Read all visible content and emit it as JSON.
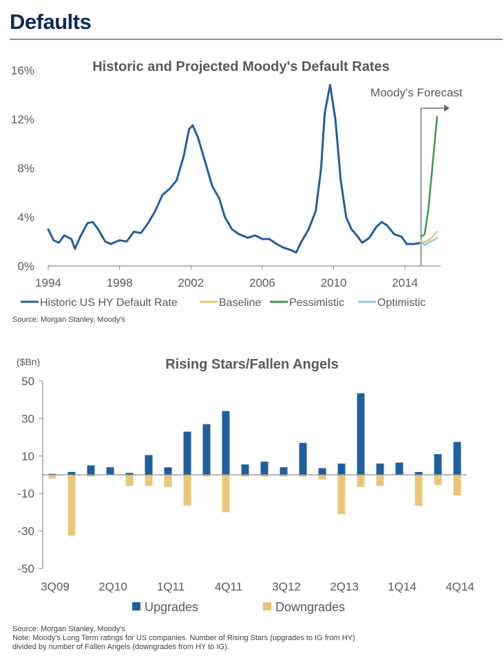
{
  "page": {
    "title": "Defaults"
  },
  "chart_data": [
    {
      "type": "line",
      "title": "Historic and Projected Moody's Default Rates",
      "ylim": [
        0,
        16
      ],
      "xlim": [
        1994,
        2016
      ],
      "y_ticks": [
        "0%",
        "4%",
        "8%",
        "12%",
        "16%"
      ],
      "x_ticks": [
        "1994",
        "1998",
        "2002",
        "2006",
        "2010",
        "2014"
      ],
      "annotation": "Moody's Forecast",
      "series": [
        {
          "name": "Historic US HY Default Rate",
          "color": "#1f5f9e",
          "points": [
            [
              1994.0,
              3.0
            ],
            [
              1994.3,
              2.1
            ],
            [
              1994.6,
              1.9
            ],
            [
              1994.9,
              2.5
            ],
            [
              1995.3,
              2.2
            ],
            [
              1995.5,
              1.4
            ],
            [
              1995.8,
              2.4
            ],
            [
              1996.2,
              3.5
            ],
            [
              1996.5,
              3.6
            ],
            [
              1996.8,
              3.0
            ],
            [
              1997.2,
              2.0
            ],
            [
              1997.5,
              1.8
            ],
            [
              1998.0,
              2.1
            ],
            [
              1998.4,
              2.0
            ],
            [
              1998.8,
              2.8
            ],
            [
              1999.2,
              2.7
            ],
            [
              1999.6,
              3.5
            ],
            [
              2000.0,
              4.5
            ],
            [
              2000.4,
              5.8
            ],
            [
              2000.8,
              6.3
            ],
            [
              2001.2,
              7.0
            ],
            [
              2001.6,
              9.0
            ],
            [
              2001.9,
              11.2
            ],
            [
              2002.1,
              11.5
            ],
            [
              2002.4,
              10.5
            ],
            [
              2002.8,
              8.5
            ],
            [
              2003.2,
              6.5
            ],
            [
              2003.6,
              5.5
            ],
            [
              2003.9,
              4.0
            ],
            [
              2004.3,
              3.0
            ],
            [
              2004.7,
              2.6
            ],
            [
              2005.2,
              2.3
            ],
            [
              2005.6,
              2.5
            ],
            [
              2006.0,
              2.2
            ],
            [
              2006.4,
              2.2
            ],
            [
              2006.8,
              1.8
            ],
            [
              2007.2,
              1.5
            ],
            [
              2007.6,
              1.3
            ],
            [
              2007.9,
              1.1
            ],
            [
              2008.2,
              2.0
            ],
            [
              2008.6,
              3.0
            ],
            [
              2009.0,
              4.5
            ],
            [
              2009.3,
              8.0
            ],
            [
              2009.5,
              12.5
            ],
            [
              2009.8,
              14.8
            ],
            [
              2010.1,
              12.0
            ],
            [
              2010.4,
              7.0
            ],
            [
              2010.7,
              4.0
            ],
            [
              2011.0,
              3.0
            ],
            [
              2011.3,
              2.5
            ],
            [
              2011.6,
              1.9
            ],
            [
              2012.0,
              2.3
            ],
            [
              2012.4,
              3.2
            ],
            [
              2012.7,
              3.6
            ],
            [
              2013.0,
              3.3
            ],
            [
              2013.4,
              2.6
            ],
            [
              2013.8,
              2.4
            ],
            [
              2014.1,
              1.8
            ],
            [
              2014.5,
              1.8
            ],
            [
              2014.9,
              1.9
            ]
          ]
        },
        {
          "name": "Baseline",
          "color": "#f2c46a",
          "points": [
            [
              2014.9,
              1.9
            ],
            [
              2015.2,
              2.0
            ],
            [
              2015.5,
              2.3
            ],
            [
              2015.8,
              2.8
            ]
          ]
        },
        {
          "name": "Pessimistic",
          "color": "#3d9a4e",
          "points": [
            [
              2014.9,
              2.4
            ],
            [
              2015.1,
              2.6
            ],
            [
              2015.3,
              4.5
            ],
            [
              2015.5,
              7.5
            ],
            [
              2015.8,
              12.2
            ]
          ]
        },
        {
          "name": "Optimistic",
          "color": "#8ccbe5",
          "points": [
            [
              2014.9,
              2.0
            ],
            [
              2015.1,
              1.7
            ],
            [
              2015.3,
              1.9
            ],
            [
              2015.6,
              2.1
            ],
            [
              2015.8,
              2.3
            ]
          ]
        }
      ]
    },
    {
      "type": "bar",
      "title": "Rising Stars/Fallen Angels",
      "unit_label": "($Bn)",
      "ylim": [
        -50,
        50
      ],
      "y_ticks": [
        "50",
        "30",
        "10",
        "-10",
        "-30",
        "-50"
      ],
      "tick_labels": [
        "3Q09",
        "2Q10",
        "1Q11",
        "4Q11",
        "3Q12",
        "2Q13",
        "1Q14",
        "4Q14"
      ],
      "categories": [
        "3Q09",
        "4Q09",
        "1Q10",
        "2Q10",
        "3Q10",
        "4Q10",
        "1Q11",
        "2Q11",
        "3Q11",
        "4Q11",
        "1Q12",
        "2Q12",
        "3Q12",
        "4Q12",
        "1Q13",
        "2Q13",
        "3Q13",
        "4Q13",
        "1Q14",
        "2Q14",
        "3Q14",
        "4Q14"
      ],
      "series": [
        {
          "name": "Upgrades",
          "color": "#1f5f9e",
          "values": [
            0.5,
            1.5,
            5.0,
            4.0,
            1.0,
            10.5,
            4.0,
            23.0,
            27.0,
            34.0,
            5.5,
            7.0,
            4.0,
            17.0,
            3.5,
            6.0,
            43.5,
            6.0,
            6.5,
            1.5,
            11.0,
            17.5
          ]
        },
        {
          "name": "Downgrades",
          "color": "#e8c77a",
          "values": [
            -2.0,
            -32.5,
            -1.0,
            0,
            -6.0,
            -6.0,
            -6.5,
            -16.5,
            -1.0,
            -20.0,
            -1.0,
            -1.0,
            -1.0,
            -1.0,
            -2.5,
            -21.0,
            -6.5,
            -6.0,
            0,
            -16.5,
            -5.5,
            -11.0
          ]
        }
      ]
    }
  ],
  "sources": {
    "top": "Source: Morgan Stanley, Moody's",
    "bottom_source": "Source: Morgan Stanley, Moody's",
    "bottom_note_1": "Note: Moody's Long Term ratings for US companies. Number of Rising Stars (upgrades to IG from HY)",
    "bottom_note_2": "divided by number of Fallen Angels (downgrades from HY to IG)."
  }
}
